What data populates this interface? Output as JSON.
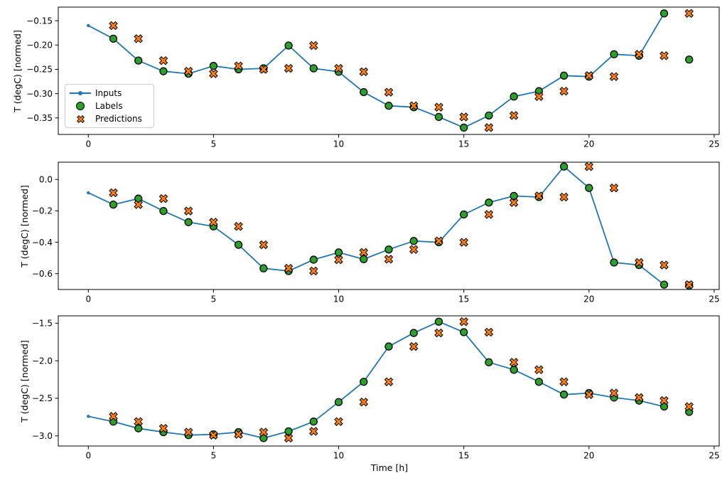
{
  "figure": {
    "background": "#ffffff",
    "xlabel": "Time [h]",
    "ylabel": "T (degC) [normed]",
    "colors": {
      "inputs": "#1f77b4",
      "labels": "#2ca02c",
      "predictions": "#ff7f0e",
      "marker_edge": "#000000",
      "axes_border": "#000000",
      "legend_border": "#cccccc"
    },
    "legend": {
      "position": "upper-left-of-subplot-1",
      "items": [
        {
          "label": "Inputs",
          "marker": "line-dot",
          "color": "#1f77b4"
        },
        {
          "label": "Labels",
          "marker": "filled-circle",
          "color": "#2ca02c"
        },
        {
          "label": "Predictions",
          "marker": "filled-x",
          "color": "#ff7f0e"
        }
      ]
    }
  },
  "chart_data": [
    {
      "type": "line",
      "subplot": 1,
      "title": "",
      "xlabel": "",
      "ylabel": "T (degC) [normed]",
      "grid": false,
      "xlim": [
        -1.2,
        25.2
      ],
      "ylim": [
        -0.384,
        -0.122
      ],
      "x_tick_vals": [
        0,
        5,
        10,
        15,
        20,
        25
      ],
      "x_tick_labels": [
        "0",
        "5",
        "10",
        "15",
        "20",
        "25"
      ],
      "y_tick_vals": [
        -0.15,
        -0.2,
        -0.25,
        -0.3,
        -0.35
      ],
      "y_tick_labels": [
        "−0.15",
        "−0.20",
        "−0.25",
        "−0.30",
        "−0.35"
      ],
      "series": [
        {
          "name": "Inputs",
          "style": "line-dot",
          "x": [
            0,
            1,
            2,
            3,
            4,
            5,
            6,
            7,
            8,
            9,
            10,
            11,
            12,
            13,
            14,
            15,
            16,
            17,
            18,
            19,
            20,
            21,
            22,
            23
          ],
          "y": [
            -0.16,
            -0.187,
            -0.232,
            -0.254,
            -0.259,
            -0.243,
            -0.25,
            -0.248,
            -0.201,
            -0.248,
            -0.255,
            -0.297,
            -0.325,
            -0.328,
            -0.348,
            -0.37,
            -0.345,
            -0.306,
            -0.295,
            -0.263,
            -0.265,
            -0.219,
            -0.222,
            -0.135
          ]
        },
        {
          "name": "Labels",
          "style": "circle",
          "x": [
            1,
            2,
            3,
            4,
            5,
            6,
            7,
            8,
            9,
            10,
            11,
            12,
            13,
            14,
            15,
            16,
            17,
            18,
            19,
            20,
            21,
            22,
            23,
            24
          ],
          "y": [
            -0.187,
            -0.232,
            -0.254,
            -0.259,
            -0.243,
            -0.25,
            -0.248,
            -0.201,
            -0.248,
            -0.255,
            -0.297,
            -0.325,
            -0.328,
            -0.348,
            -0.37,
            -0.345,
            -0.306,
            -0.295,
            -0.263,
            -0.265,
            -0.219,
            -0.222,
            -0.135,
            -0.23
          ]
        },
        {
          "name": "Predictions",
          "style": "x",
          "x": [
            1,
            2,
            3,
            4,
            5,
            6,
            7,
            8,
            9,
            10,
            11,
            12,
            13,
            14,
            15,
            16,
            17,
            18,
            19,
            20,
            21,
            22,
            23,
            24
          ],
          "y": [
            -0.16,
            -0.187,
            -0.232,
            -0.254,
            -0.259,
            -0.243,
            -0.25,
            -0.248,
            -0.201,
            -0.248,
            -0.255,
            -0.297,
            -0.325,
            -0.328,
            -0.348,
            -0.37,
            -0.345,
            -0.306,
            -0.295,
            -0.263,
            -0.265,
            -0.219,
            -0.222,
            -0.135
          ]
        }
      ]
    },
    {
      "type": "line",
      "subplot": 2,
      "title": "",
      "xlabel": "",
      "ylabel": "T (degC) [normed]",
      "grid": false,
      "xlim": [
        -1.2,
        25.2
      ],
      "ylim": [
        -0.701,
        0.11
      ],
      "x_tick_vals": [
        0,
        5,
        10,
        15,
        20,
        25
      ],
      "x_tick_labels": [
        "0",
        "5",
        "10",
        "15",
        "20",
        "25"
      ],
      "y_tick_vals": [
        0.0,
        -0.2,
        -0.4,
        -0.6
      ],
      "y_tick_labels": [
        "0.0",
        "−0.2",
        "−0.4",
        "−0.6"
      ],
      "series": [
        {
          "name": "Inputs",
          "style": "line-dot",
          "x": [
            0,
            1,
            2,
            3,
            4,
            5,
            6,
            7,
            8,
            9,
            10,
            11,
            12,
            13,
            14,
            15,
            16,
            17,
            18,
            19,
            20,
            21,
            22,
            23
          ],
          "y": [
            -0.085,
            -0.16,
            -0.122,
            -0.201,
            -0.272,
            -0.299,
            -0.416,
            -0.566,
            -0.583,
            -0.511,
            -0.465,
            -0.508,
            -0.446,
            -0.392,
            -0.4,
            -0.223,
            -0.147,
            -0.105,
            -0.112,
            0.082,
            -0.054,
            -0.529,
            -0.545,
            -0.67
          ]
        },
        {
          "name": "Labels",
          "style": "circle",
          "x": [
            1,
            2,
            3,
            4,
            5,
            6,
            7,
            8,
            9,
            10,
            11,
            12,
            13,
            14,
            15,
            16,
            17,
            18,
            19,
            20,
            21,
            22,
            23,
            24
          ],
          "y": [
            -0.16,
            -0.122,
            -0.201,
            -0.272,
            -0.299,
            -0.416,
            -0.566,
            -0.583,
            -0.511,
            -0.465,
            -0.508,
            -0.446,
            -0.392,
            -0.4,
            -0.223,
            -0.147,
            -0.105,
            -0.112,
            0.082,
            -0.054,
            -0.529,
            -0.545,
            -0.67,
            -0.675
          ]
        },
        {
          "name": "Predictions",
          "style": "x",
          "x": [
            1,
            2,
            3,
            4,
            5,
            6,
            7,
            8,
            9,
            10,
            11,
            12,
            13,
            14,
            15,
            16,
            17,
            18,
            19,
            20,
            21,
            22,
            23,
            24
          ],
          "y": [
            -0.085,
            -0.16,
            -0.122,
            -0.201,
            -0.272,
            -0.299,
            -0.416,
            -0.566,
            -0.583,
            -0.511,
            -0.465,
            -0.508,
            -0.446,
            -0.392,
            -0.4,
            -0.223,
            -0.147,
            -0.105,
            -0.112,
            0.082,
            -0.054,
            -0.529,
            -0.545,
            -0.67
          ]
        }
      ]
    },
    {
      "type": "line",
      "subplot": 3,
      "title": "",
      "xlabel": "Time [h]",
      "ylabel": "T (degC) [normed]",
      "grid": false,
      "xlim": [
        -1.2,
        25.2
      ],
      "ylim": [
        -3.135,
        -1.402
      ],
      "x_tick_vals": [
        0,
        5,
        10,
        15,
        20,
        25
      ],
      "x_tick_labels": [
        "0",
        "5",
        "10",
        "15",
        "20",
        "25"
      ],
      "y_tick_vals": [
        -1.5,
        -2.0,
        -2.5,
        -3.0
      ],
      "y_tick_labels": [
        "−1.5",
        "−2.0",
        "−2.5",
        "−3.0"
      ],
      "series": [
        {
          "name": "Inputs",
          "style": "line-dot",
          "x": [
            0,
            1,
            2,
            3,
            4,
            5,
            6,
            7,
            8,
            9,
            10,
            11,
            12,
            13,
            14,
            15,
            16,
            17,
            18,
            19,
            20,
            21,
            22,
            23
          ],
          "y": [
            -2.74,
            -2.81,
            -2.9,
            -2.95,
            -2.99,
            -2.98,
            -2.95,
            -3.03,
            -2.94,
            -2.81,
            -2.55,
            -2.28,
            -1.81,
            -1.63,
            -1.48,
            -1.62,
            -2.02,
            -2.12,
            -2.28,
            -2.45,
            -2.43,
            -2.49,
            -2.53,
            -2.61
          ]
        },
        {
          "name": "Labels",
          "style": "circle",
          "x": [
            1,
            2,
            3,
            4,
            5,
            6,
            7,
            8,
            9,
            10,
            11,
            12,
            13,
            14,
            15,
            16,
            17,
            18,
            19,
            20,
            21,
            22,
            23,
            24
          ],
          "y": [
            -2.81,
            -2.9,
            -2.95,
            -2.99,
            -2.98,
            -2.95,
            -3.03,
            -2.94,
            -2.81,
            -2.55,
            -2.28,
            -1.81,
            -1.63,
            -1.48,
            -1.62,
            -2.02,
            -2.12,
            -2.28,
            -2.45,
            -2.43,
            -2.49,
            -2.53,
            -2.61,
            -2.68
          ]
        },
        {
          "name": "Predictions",
          "style": "x",
          "x": [
            1,
            2,
            3,
            4,
            5,
            6,
            7,
            8,
            9,
            10,
            11,
            12,
            13,
            14,
            15,
            16,
            17,
            18,
            19,
            20,
            21,
            22,
            23,
            24
          ],
          "y": [
            -2.74,
            -2.81,
            -2.9,
            -2.95,
            -2.99,
            -2.98,
            -2.95,
            -3.03,
            -2.94,
            -2.81,
            -2.55,
            -2.28,
            -1.81,
            -1.63,
            -1.48,
            -1.62,
            -2.02,
            -2.12,
            -2.28,
            -2.45,
            -2.43,
            -2.49,
            -2.53,
            -2.61
          ]
        }
      ]
    }
  ]
}
